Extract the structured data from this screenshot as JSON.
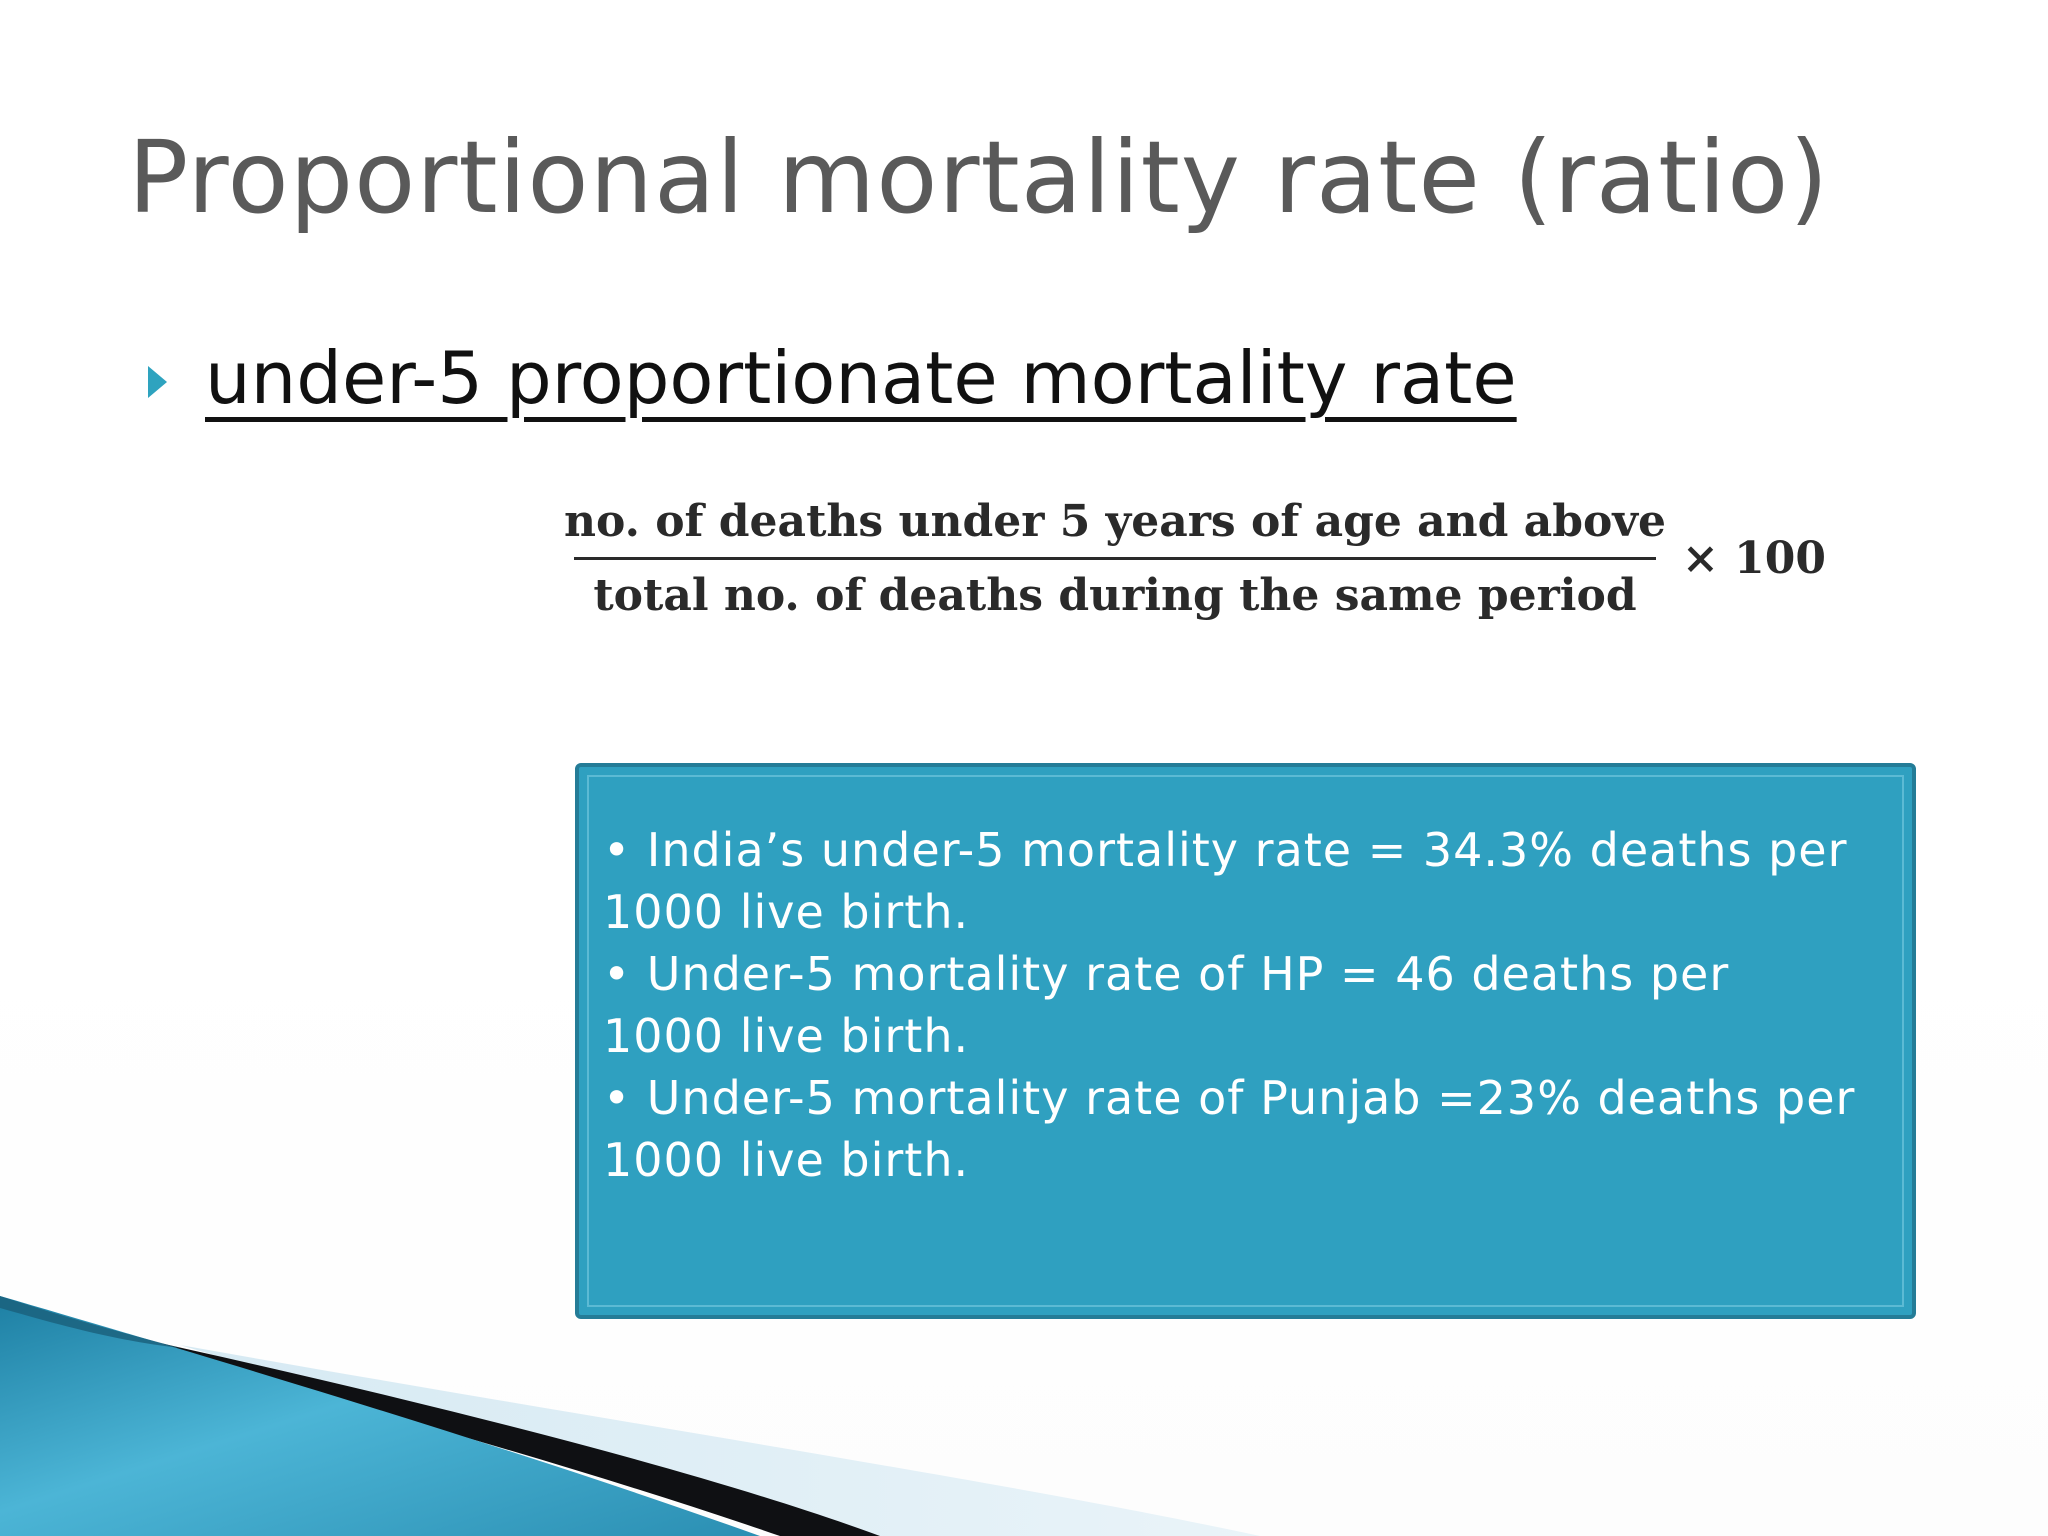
{
  "slide": {
    "title": "Proportional mortality rate (ratio)",
    "bullet": {
      "icon": "triangle-right-icon",
      "text": "under-5 proportionate mortality rate"
    },
    "formula": {
      "numerator": "no. of deaths under 5 years of age and above",
      "denominator": "total no. of deaths during the same period",
      "multiplier": "× 100"
    },
    "info_box": {
      "items": [
        "• India’s under-5 mortality rate = 34.3% deaths per\n1000 live birth.",
        "• Under-5 mortality rate of HP = 46 deaths per\n1000 live birth.",
        "• Under-5 mortality rate of Punjab =23% deaths per\n1000 live birth."
      ]
    }
  },
  "colors": {
    "title": "#5a5a5a",
    "accent": "#2ea3bf",
    "box_fill": "#2fa0c0",
    "box_border": "#247c97"
  }
}
